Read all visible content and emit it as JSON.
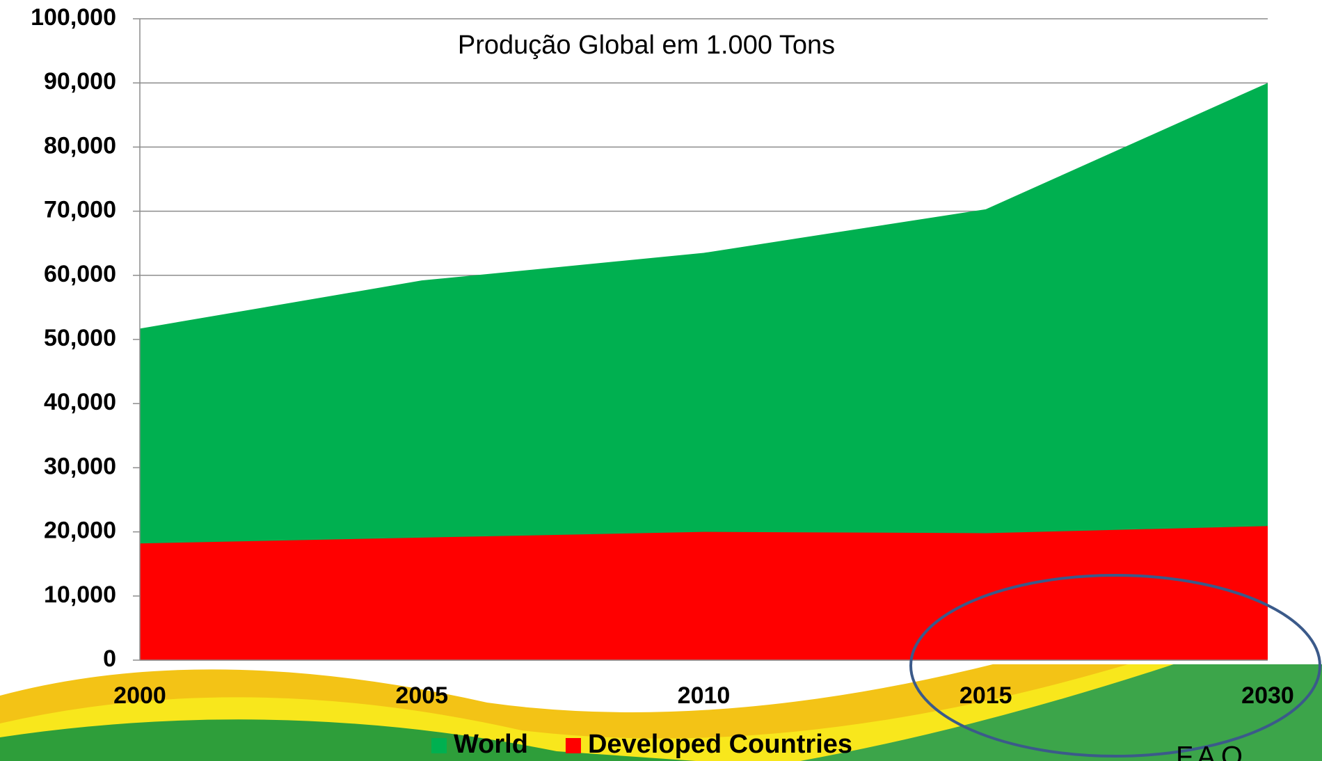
{
  "chart_data": {
    "type": "area",
    "title": "Produção Global em 1.000 Tons",
    "categories": [
      "2000",
      "2005",
      "2010",
      "2015",
      "2030"
    ],
    "series": [
      {
        "name": "World",
        "color": "#00b050",
        "values": [
          51700,
          59200,
          63500,
          70300,
          90000
        ]
      },
      {
        "name": "Developed Countries",
        "color": "#ff0000",
        "values": [
          18200,
          19100,
          20000,
          19800,
          20900
        ]
      }
    ],
    "ylim": [
      0,
      100000
    ],
    "yticks": [
      0,
      {
        "value": 10000,
        "label": "10,000"
      },
      {
        "value": 20000,
        "label": "20,000"
      },
      {
        "value": 30000,
        "label": "30,000"
      },
      {
        "value": 40000,
        "label": "40,000"
      },
      {
        "value": 50000,
        "label": "50,000"
      },
      {
        "value": 60000,
        "label": "60,000"
      },
      {
        "value": 70000,
        "label": "70,000"
      },
      {
        "value": 80000,
        "label": "80,000"
      },
      {
        "value": 90000,
        "label": "90,000"
      },
      {
        "value": 100000,
        "label": "100,000"
      }
    ],
    "grid": true,
    "legend": "bottom",
    "annotation": "FAO"
  }
}
